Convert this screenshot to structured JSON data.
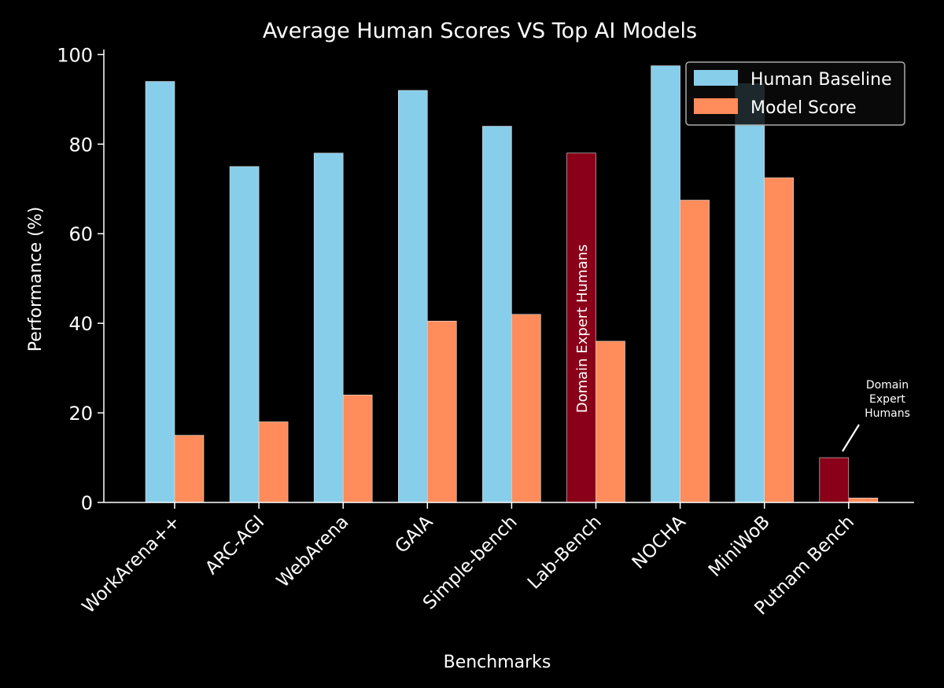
{
  "chart_data": {
    "type": "bar",
    "title": "Average Human Scores VS Top AI Models",
    "xlabel": "Benchmarks",
    "ylabel": "Performance (%)",
    "ylim": [
      0,
      102
    ],
    "yticks": [
      0,
      20,
      40,
      60,
      80,
      100
    ],
    "grid": false,
    "legend_position": "top-right",
    "categories": [
      "WorkArena++",
      "ARC-AGI",
      "WebArena",
      "GAIA",
      "Simple-bench",
      "Lab-Bench",
      "NOCHA",
      "MiniWoB",
      "Putnam Bench"
    ],
    "series": [
      {
        "name": "Human Baseline",
        "color": "#87CEEB",
        "values": [
          94,
          75,
          78,
          92,
          84,
          78,
          97.5,
          93.5,
          10
        ],
        "highlight_color": "#8B0019",
        "highlight_indices": [
          5,
          8
        ]
      },
      {
        "name": "Model Score",
        "color": "#FF8C5A",
        "values": [
          15,
          18,
          24,
          40.5,
          42,
          36,
          67.5,
          72.5,
          1
        ]
      }
    ],
    "annotations": [
      {
        "text": "Domain Expert Humans",
        "category": "Lab-Bench",
        "series": "Human Baseline",
        "style": "vertical-in-bar"
      },
      {
        "text": "Domain\nExpert\nHumans",
        "category": "Putnam Bench",
        "series": "Human Baseline",
        "style": "arrow-label"
      }
    ]
  },
  "colors": {
    "background": "#000000",
    "axis": "#FFFFFF",
    "text": "#FFFFFF",
    "legend_border": "#AAAAAA"
  }
}
